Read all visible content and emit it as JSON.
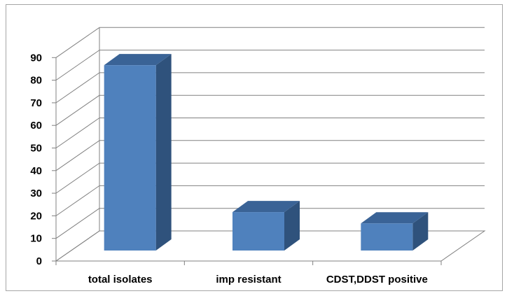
{
  "chart_data": {
    "type": "bar",
    "style": "3d-column",
    "categories": [
      "total isolates",
      "imp resistant",
      "CDST,DDST positive"
    ],
    "values": [
      82,
      17,
      12
    ],
    "title": "",
    "xlabel": "",
    "ylabel": "",
    "ylim": [
      0,
      90
    ],
    "yticks": [
      "0",
      "10",
      "20",
      "30",
      "40",
      "50",
      "60",
      "70",
      "80",
      "90"
    ],
    "grid": true,
    "legend": "none",
    "colors": {
      "bar_front": "#4f81bd",
      "bar_side": "#2f527c",
      "bar_top": "#3a6396",
      "gridline": "#808080",
      "frame": "#a6a6a6"
    }
  }
}
